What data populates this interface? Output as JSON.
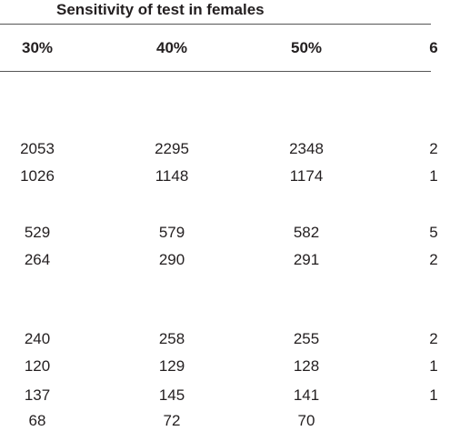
{
  "table": {
    "title": "Sensitivity of test in females",
    "columns": [
      "30%",
      "40%",
      "50%",
      "6"
    ],
    "rows": [
      [
        "2053",
        "2295",
        "2348",
        "2"
      ],
      [
        "1026",
        "1148",
        "1174",
        "1"
      ],
      [
        "529",
        "579",
        "582",
        "5"
      ],
      [
        "264",
        "290",
        "291",
        "2"
      ],
      [
        "240",
        "258",
        "255",
        "2"
      ],
      [
        "120",
        "129",
        "128",
        "1"
      ],
      [
        "137",
        "145",
        "141",
        "1"
      ],
      [
        "68",
        "72",
        "70",
        ""
      ]
    ]
  }
}
